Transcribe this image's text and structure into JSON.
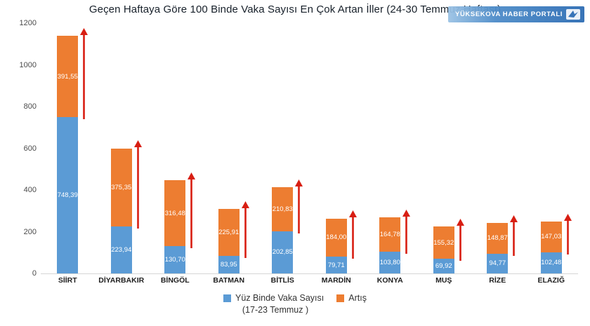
{
  "title": "Geçen Haftaya Göre 100 Binde Vaka Sayısı En Çok Artan İller (24-30 Temmuz Haftası)",
  "watermark": {
    "text": "YÜKSEKOVA HABER PORTALI"
  },
  "legend": {
    "series1_label": "Yüz Binde Vaka Sayısı",
    "series2_label": "Artış",
    "note": "(17-23 Temmuz )"
  },
  "colors": {
    "blue": "#5B9BD5",
    "orange": "#ED7D31",
    "red": "#D81E12",
    "axis_text": "#4a4a4a"
  },
  "chart_data": {
    "type": "bar",
    "stacked": true,
    "title": "Geçen Haftaya Göre 100 Binde Vaka Sayısı En Çok Artan İller (24-30 Temmuz Haftası)",
    "categories": [
      "SİİRT",
      "DİYARBAKIR",
      "BİNGÖL",
      "BATMAN",
      "BİTLİS",
      "MARDİN",
      "KONYA",
      "MUŞ",
      "RİZE",
      "ELAZIĞ"
    ],
    "series": [
      {
        "name": "Yüz Binde Vaka Sayısı (17-23 Temmuz)",
        "color": "#5B9BD5",
        "values": [
          748.39,
          223.94,
          130.7,
          83.95,
          202.85,
          79.71,
          103.8,
          69.92,
          94.77,
          102.48
        ]
      },
      {
        "name": "Artış",
        "color": "#ED7D31",
        "values": [
          391.55,
          375.35,
          316.48,
          225.91,
          210.83,
          184.0,
          164.78,
          155.32,
          148.87,
          147.03
        ]
      }
    ],
    "annotations": "red up-arrow beside each bar indicating increase",
    "xlabel": "",
    "ylabel": "",
    "ylim": [
      0,
      1200
    ],
    "yticks": [
      0,
      200,
      400,
      600,
      800,
      1000,
      1200
    ],
    "grid": false,
    "legend_position": "bottom",
    "value_label_format": "decimal comma, 2 digits"
  }
}
